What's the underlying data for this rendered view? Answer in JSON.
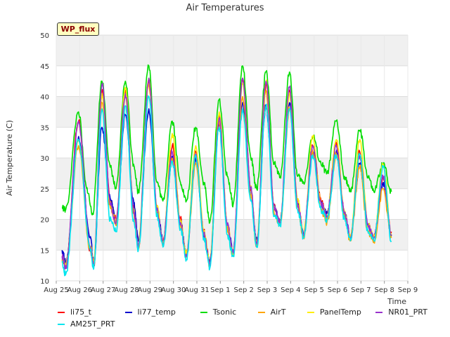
{
  "chart_data": {
    "type": "line",
    "title": "Air Temperatures",
    "xlabel": "Time",
    "ylabel": "Air Temperature (C)",
    "ylim": [
      10,
      50
    ],
    "yticks": [
      10,
      15,
      20,
      25,
      30,
      35,
      40,
      45,
      50
    ],
    "xlim": [
      "Aug 25",
      "Sep 9"
    ],
    "xtick_labels": [
      "Aug 25",
      "Aug 26",
      "Aug 27",
      "Aug 28",
      "Aug 29",
      "Aug 30",
      "Aug 31",
      "Sep 1",
      "Sep 2",
      "Sep 3",
      "Sep 4",
      "Sep 5",
      "Sep 6",
      "Sep 7",
      "Sep 8",
      "Sep 9"
    ],
    "grid": true,
    "legend_position": "bottom",
    "annotation": "WP_flux",
    "daily_extremes_note": "each entry is [day, value] with day measured from Aug 25 = 0",
    "series": [
      {
        "name": "li75_t",
        "color": "#ff0000",
        "points": [
          [
            0.25,
            14.0
          ],
          [
            0.4,
            12.5
          ],
          [
            0.95,
            36.0
          ],
          [
            1.45,
            15.0
          ],
          [
            1.6,
            12.5
          ],
          [
            1.95,
            41.0
          ],
          [
            2.3,
            23.0
          ],
          [
            2.55,
            20.0
          ],
          [
            2.95,
            41.0
          ],
          [
            3.3,
            22.0
          ],
          [
            3.5,
            15.5
          ],
          [
            3.95,
            42.5
          ],
          [
            4.3,
            22.0
          ],
          [
            4.55,
            16.0
          ],
          [
            4.95,
            32.0
          ],
          [
            5.3,
            20.0
          ],
          [
            5.55,
            14.0
          ],
          [
            5.95,
            31.0
          ],
          [
            6.3,
            18.0
          ],
          [
            6.55,
            13.0
          ],
          [
            6.95,
            37.0
          ],
          [
            7.3,
            19.0
          ],
          [
            7.55,
            14.5
          ],
          [
            7.95,
            43.0
          ],
          [
            8.3,
            25.0
          ],
          [
            8.55,
            16.0
          ],
          [
            8.95,
            42.0
          ],
          [
            9.3,
            22.0
          ],
          [
            9.55,
            19.5
          ],
          [
            9.95,
            41.0
          ],
          [
            10.3,
            23.0
          ],
          [
            10.55,
            17.5
          ],
          [
            10.95,
            32.0
          ],
          [
            11.3,
            23.0
          ],
          [
            11.55,
            20.5
          ],
          [
            11.95,
            32.5
          ],
          [
            12.3,
            21.0
          ],
          [
            12.55,
            17.0
          ],
          [
            12.95,
            31.0
          ],
          [
            13.3,
            19.0
          ],
          [
            13.55,
            17.0
          ],
          [
            13.95,
            27.0
          ],
          [
            14.3,
            18.0
          ]
        ]
      },
      {
        "name": "li77_temp",
        "color": "#0000cd",
        "points": [
          [
            0.25,
            15.0
          ],
          [
            0.4,
            13.0
          ],
          [
            0.95,
            33.5
          ],
          [
            1.45,
            17.0
          ],
          [
            1.6,
            13.0
          ],
          [
            1.95,
            35.0
          ],
          [
            2.3,
            23.5
          ],
          [
            2.55,
            19.5
          ],
          [
            2.95,
            37.0
          ],
          [
            3.3,
            23.0
          ],
          [
            3.5,
            16.5
          ],
          [
            3.95,
            38.0
          ],
          [
            4.3,
            22.0
          ],
          [
            4.55,
            16.5
          ],
          [
            4.95,
            30.0
          ],
          [
            5.3,
            19.5
          ],
          [
            5.55,
            14.5
          ],
          [
            5.95,
            30.0
          ],
          [
            6.3,
            17.5
          ],
          [
            6.55,
            13.0
          ],
          [
            6.95,
            35.5
          ],
          [
            7.3,
            18.5
          ],
          [
            7.55,
            15.0
          ],
          [
            7.95,
            39.0
          ],
          [
            8.3,
            24.0
          ],
          [
            8.55,
            16.5
          ],
          [
            8.95,
            38.5
          ],
          [
            9.3,
            22.0
          ],
          [
            9.55,
            19.5
          ],
          [
            9.95,
            39.0
          ],
          [
            10.3,
            22.5
          ],
          [
            10.55,
            17.5
          ],
          [
            10.95,
            31.0
          ],
          [
            11.3,
            22.5
          ],
          [
            11.55,
            21.0
          ],
          [
            11.95,
            31.0
          ],
          [
            12.3,
            21.0
          ],
          [
            12.55,
            17.0
          ],
          [
            12.95,
            29.0
          ],
          [
            13.3,
            19.0
          ],
          [
            13.55,
            17.0
          ],
          [
            13.95,
            26.0
          ],
          [
            14.3,
            17.5
          ]
        ]
      },
      {
        "name": "Tsonic",
        "color": "#00dd00",
        "points": [
          [
            0.25,
            22.0
          ],
          [
            0.4,
            21.5
          ],
          [
            0.95,
            37.5
          ],
          [
            1.3,
            25.0
          ],
          [
            1.55,
            21.0
          ],
          [
            1.95,
            42.5
          ],
          [
            2.3,
            28.5
          ],
          [
            2.55,
            25.0
          ],
          [
            2.95,
            42.5
          ],
          [
            3.3,
            29.0
          ],
          [
            3.5,
            24.5
          ],
          [
            3.95,
            45.0
          ],
          [
            4.3,
            26.0
          ],
          [
            4.55,
            23.0
          ],
          [
            4.95,
            36.0
          ],
          [
            5.3,
            26.0
          ],
          [
            5.55,
            23.0
          ],
          [
            5.95,
            35.0
          ],
          [
            6.3,
            26.0
          ],
          [
            6.55,
            19.5
          ],
          [
            6.95,
            39.5
          ],
          [
            7.3,
            27.0
          ],
          [
            7.55,
            22.5
          ],
          [
            7.95,
            45.0
          ],
          [
            8.3,
            30.0
          ],
          [
            8.55,
            25.0
          ],
          [
            8.95,
            44.0
          ],
          [
            9.3,
            29.0
          ],
          [
            9.55,
            27.0
          ],
          [
            9.95,
            44.0
          ],
          [
            10.3,
            27.0
          ],
          [
            10.55,
            26.0
          ],
          [
            10.95,
            33.5
          ],
          [
            11.3,
            29.0
          ],
          [
            11.55,
            27.5
          ],
          [
            11.95,
            36.0
          ],
          [
            12.3,
            27.0
          ],
          [
            12.55,
            24.5
          ],
          [
            12.95,
            34.5
          ],
          [
            13.3,
            27.0
          ],
          [
            13.55,
            24.5
          ],
          [
            13.95,
            29.0
          ],
          [
            14.3,
            24.5
          ]
        ]
      },
      {
        "name": "AirT",
        "color": "#ffa500",
        "points": [
          [
            0.25,
            13.5
          ],
          [
            0.4,
            12.5
          ],
          [
            0.95,
            32.0
          ],
          [
            1.45,
            15.0
          ],
          [
            1.6,
            13.0
          ],
          [
            1.95,
            39.0
          ],
          [
            2.3,
            22.0
          ],
          [
            2.55,
            19.0
          ],
          [
            2.95,
            40.0
          ],
          [
            3.3,
            21.0
          ],
          [
            3.5,
            15.5
          ],
          [
            3.95,
            42.0
          ],
          [
            4.3,
            21.0
          ],
          [
            4.55,
            16.0
          ],
          [
            4.95,
            30.0
          ],
          [
            5.3,
            19.0
          ],
          [
            5.55,
            14.0
          ],
          [
            5.95,
            29.0
          ],
          [
            6.3,
            17.5
          ],
          [
            6.55,
            12.5
          ],
          [
            6.95,
            36.0
          ],
          [
            7.3,
            18.5
          ],
          [
            7.55,
            14.0
          ],
          [
            7.95,
            40.0
          ],
          [
            8.3,
            24.0
          ],
          [
            8.55,
            15.5
          ],
          [
            8.95,
            41.0
          ],
          [
            9.3,
            21.0
          ],
          [
            9.55,
            19.0
          ],
          [
            9.95,
            38.0
          ],
          [
            10.3,
            22.0
          ],
          [
            10.55,
            17.0
          ],
          [
            10.95,
            31.0
          ],
          [
            11.3,
            21.5
          ],
          [
            11.55,
            19.5
          ],
          [
            11.95,
            30.5
          ],
          [
            12.3,
            20.5
          ],
          [
            12.55,
            16.5
          ],
          [
            12.95,
            28.5
          ],
          [
            13.3,
            18.0
          ],
          [
            13.55,
            16.5
          ],
          [
            13.95,
            25.0
          ],
          [
            14.3,
            17.0
          ]
        ]
      },
      {
        "name": "PanelTemp",
        "color": "#ffee00",
        "points": [
          [
            0.25,
            14.0
          ],
          [
            0.4,
            12.5
          ],
          [
            0.95,
            33.0
          ],
          [
            1.45,
            15.5
          ],
          [
            1.6,
            13.0
          ],
          [
            1.95,
            40.5
          ],
          [
            2.3,
            22.5
          ],
          [
            2.55,
            19.5
          ],
          [
            2.95,
            41.5
          ],
          [
            3.3,
            21.5
          ],
          [
            3.5,
            16.0
          ],
          [
            3.95,
            43.0
          ],
          [
            4.3,
            22.0
          ],
          [
            4.55,
            16.0
          ],
          [
            4.95,
            34.0
          ],
          [
            5.3,
            19.5
          ],
          [
            5.55,
            14.5
          ],
          [
            5.95,
            32.0
          ],
          [
            6.3,
            18.0
          ],
          [
            6.55,
            13.0
          ],
          [
            6.95,
            37.5
          ],
          [
            7.3,
            19.0
          ],
          [
            7.55,
            14.5
          ],
          [
            7.95,
            42.0
          ],
          [
            8.3,
            25.0
          ],
          [
            8.55,
            16.0
          ],
          [
            8.95,
            42.5
          ],
          [
            9.3,
            22.0
          ],
          [
            9.55,
            19.5
          ],
          [
            9.95,
            40.5
          ],
          [
            10.3,
            23.0
          ],
          [
            10.55,
            17.5
          ],
          [
            10.95,
            33.5
          ],
          [
            11.3,
            22.5
          ],
          [
            11.55,
            20.5
          ],
          [
            11.95,
            33.0
          ],
          [
            12.3,
            21.0
          ],
          [
            12.55,
            17.0
          ],
          [
            12.95,
            33.0
          ],
          [
            13.3,
            19.0
          ],
          [
            13.55,
            17.0
          ],
          [
            13.95,
            29.0
          ],
          [
            14.3,
            17.5
          ]
        ]
      },
      {
        "name": "NR01_PRT",
        "color": "#9932cc",
        "points": [
          [
            0.25,
            14.0
          ],
          [
            0.4,
            12.0
          ],
          [
            0.95,
            36.0
          ],
          [
            1.45,
            15.5
          ],
          [
            1.6,
            12.5
          ],
          [
            1.95,
            42.0
          ],
          [
            2.3,
            22.5
          ],
          [
            2.55,
            19.5
          ],
          [
            2.95,
            40.5
          ],
          [
            3.3,
            21.5
          ],
          [
            3.5,
            15.5
          ],
          [
            3.95,
            43.0
          ],
          [
            4.3,
            21.5
          ],
          [
            4.55,
            16.0
          ],
          [
            4.95,
            31.0
          ],
          [
            5.3,
            19.5
          ],
          [
            5.55,
            14.0
          ],
          [
            5.95,
            30.5
          ],
          [
            6.3,
            17.5
          ],
          [
            6.55,
            12.5
          ],
          [
            6.95,
            36.5
          ],
          [
            7.3,
            19.0
          ],
          [
            7.55,
            14.5
          ],
          [
            7.95,
            43.0
          ],
          [
            8.3,
            25.0
          ],
          [
            8.55,
            16.0
          ],
          [
            8.95,
            42.5
          ],
          [
            9.3,
            22.0
          ],
          [
            9.55,
            19.5
          ],
          [
            9.95,
            41.5
          ],
          [
            10.3,
            22.5
          ],
          [
            10.55,
            17.5
          ],
          [
            10.95,
            32.0
          ],
          [
            11.3,
            22.5
          ],
          [
            11.55,
            20.5
          ],
          [
            11.95,
            32.0
          ],
          [
            12.3,
            21.0
          ],
          [
            12.55,
            17.0
          ],
          [
            12.95,
            30.5
          ],
          [
            13.3,
            19.0
          ],
          [
            13.55,
            17.0
          ],
          [
            13.95,
            27.0
          ],
          [
            14.3,
            17.5
          ]
        ]
      },
      {
        "name": "AM25T_PRT",
        "color": "#00e5ee",
        "points": [
          [
            0.25,
            13.0
          ],
          [
            0.4,
            11.0
          ],
          [
            0.95,
            33.0
          ],
          [
            1.45,
            15.0
          ],
          [
            1.6,
            12.0
          ],
          [
            1.95,
            38.0
          ],
          [
            2.3,
            20.0
          ],
          [
            2.55,
            18.0
          ],
          [
            2.95,
            38.5
          ],
          [
            3.3,
            20.0
          ],
          [
            3.5,
            15.0
          ],
          [
            3.95,
            40.0
          ],
          [
            4.3,
            20.5
          ],
          [
            4.55,
            15.5
          ],
          [
            4.95,
            29.5
          ],
          [
            5.3,
            18.5
          ],
          [
            5.55,
            13.5
          ],
          [
            5.95,
            30.5
          ],
          [
            6.3,
            17.0
          ],
          [
            6.55,
            12.0
          ],
          [
            6.95,
            35.0
          ],
          [
            7.3,
            17.5
          ],
          [
            7.55,
            14.0
          ],
          [
            7.95,
            38.0
          ],
          [
            8.3,
            23.0
          ],
          [
            8.55,
            15.5
          ],
          [
            8.95,
            38.5
          ],
          [
            9.3,
            20.5
          ],
          [
            9.55,
            19.0
          ],
          [
            9.95,
            38.0
          ],
          [
            10.3,
            21.5
          ],
          [
            10.55,
            17.0
          ],
          [
            10.95,
            30.5
          ],
          [
            11.3,
            21.5
          ],
          [
            11.55,
            20.0
          ],
          [
            11.95,
            30.5
          ],
          [
            12.3,
            20.0
          ],
          [
            12.55,
            16.5
          ],
          [
            12.95,
            30.5
          ],
          [
            13.3,
            18.0
          ],
          [
            13.55,
            16.5
          ],
          [
            13.95,
            28.5
          ],
          [
            14.3,
            16.5
          ]
        ]
      }
    ]
  }
}
